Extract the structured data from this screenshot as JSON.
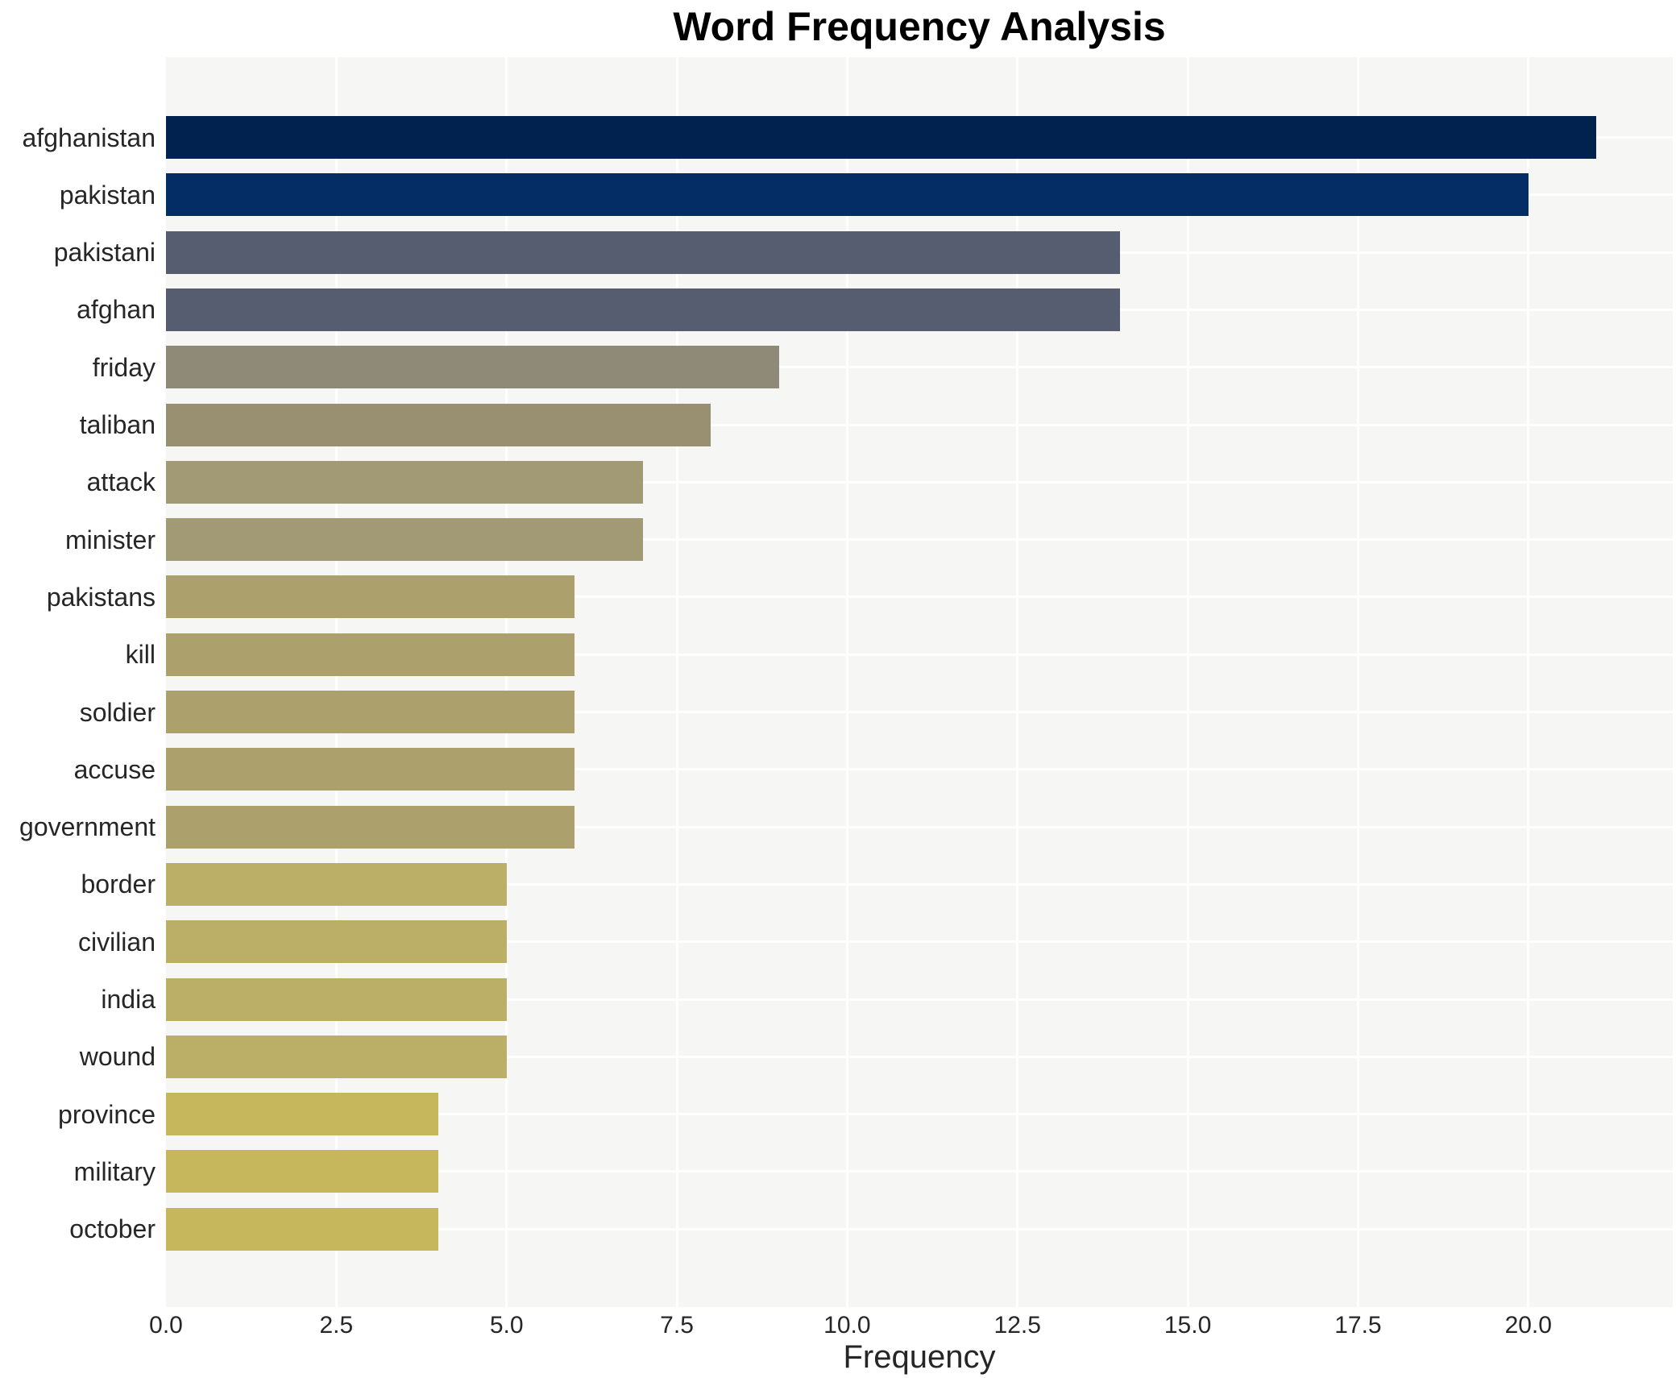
{
  "title": "Word Frequency Analysis",
  "x_axis_label": "Frequency",
  "x_ticks": [
    "0.0",
    "2.5",
    "5.0",
    "7.5",
    "10.0",
    "12.5",
    "15.0",
    "17.5",
    "20.0"
  ],
  "colors": {
    "figure_bg": "#ffffff",
    "plot_bg": "#f6f6f4",
    "gridline": "#ffffff",
    "tick_text": "#262626",
    "title_text": "#000000"
  },
  "chart_data": {
    "type": "bar",
    "orientation": "horizontal",
    "title": "Word Frequency Analysis",
    "xlabel": "Frequency",
    "ylabel": "",
    "xlim": [
      0,
      22.12
    ],
    "grid": true,
    "legend": false,
    "categories": [
      "afghanistan",
      "pakistan",
      "pakistani",
      "afghan",
      "friday",
      "taliban",
      "attack",
      "minister",
      "pakistans",
      "kill",
      "soldier",
      "accuse",
      "government",
      "border",
      "civilian",
      "india",
      "wound",
      "province",
      "military",
      "october"
    ],
    "values": [
      21,
      20,
      14,
      14,
      9,
      8,
      7,
      7,
      6,
      6,
      6,
      6,
      6,
      5,
      5,
      5,
      5,
      4,
      4,
      4
    ],
    "bar_colors": [
      "#01224e",
      "#032d64",
      "#565d71",
      "#565d71",
      "#8f8977",
      "#989070",
      "#a29a74",
      "#a29a74",
      "#aca16c",
      "#aca16c",
      "#aca16c",
      "#aca16c",
      "#aca16c",
      "#bbae67",
      "#bbae67",
      "#bbae67",
      "#bbae67",
      "#c6b75d",
      "#c6b75d",
      "#c6b75d"
    ]
  }
}
